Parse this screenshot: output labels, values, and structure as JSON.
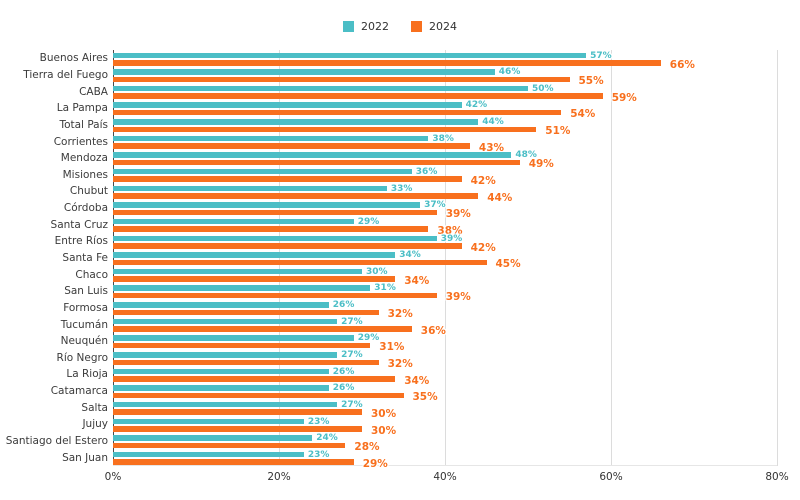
{
  "legend": {
    "items": [
      {
        "label": "2022",
        "color": "#4BBEC6"
      },
      {
        "label": "2024",
        "color": "#F8701E"
      }
    ]
  },
  "chart_data": {
    "type": "bar",
    "orientation": "horizontal",
    "title": "",
    "xlabel": "",
    "ylabel": "",
    "xlim": [
      0,
      80
    ],
    "value_suffix": "%",
    "grid": "vertical",
    "legend_position": "top-center",
    "categories": [
      "Buenos Aires",
      "Tierra del Fuego",
      "CABA",
      "La Pampa",
      "Total País",
      "Corrientes",
      "Mendoza",
      "Misiones",
      "Chubut",
      "Córdoba",
      "Santa Cruz",
      "Entre Ríos",
      "Santa Fe",
      "Chaco",
      "San Luis",
      "Formosa",
      "Tucumán",
      "Neuquén",
      "Río Negro",
      "La Rioja",
      "Catamarca",
      "Salta",
      "Jujuy",
      "Santiago del Estero",
      "San Juan"
    ],
    "series": [
      {
        "name": "2022",
        "color": "#4BBEC6",
        "values": [
          57,
          46,
          50,
          42,
          44,
          38,
          48,
          36,
          33,
          37,
          29,
          39,
          34,
          30,
          31,
          26,
          27,
          29,
          27,
          26,
          26,
          27,
          23,
          24,
          23
        ]
      },
      {
        "name": "2024",
        "color": "#F8701E",
        "values": [
          66,
          55,
          59,
          54,
          51,
          43,
          49,
          42,
          44,
          39,
          38,
          42,
          45,
          34,
          39,
          32,
          36,
          31,
          32,
          34,
          35,
          30,
          30,
          28,
          29
        ]
      }
    ],
    "x_ticks": [
      {
        "value": 0,
        "label": "0%"
      },
      {
        "value": 20,
        "label": "20%"
      },
      {
        "value": 40,
        "label": "40%"
      },
      {
        "value": 60,
        "label": "60%"
      },
      {
        "value": 80,
        "label": "80%"
      }
    ],
    "colors": {
      "gridline": "#dcdcdc",
      "zero_axis": "#4a4a4a",
      "category_label": "#3b3b3b",
      "tick_label": "#333333"
    }
  }
}
